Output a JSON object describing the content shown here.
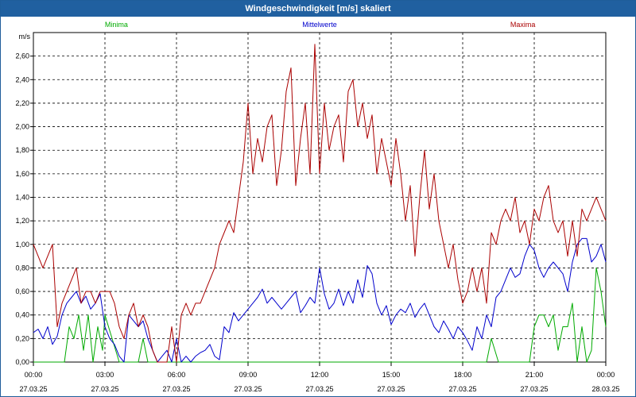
{
  "window": {
    "title": "Windgeschwindigkeit [m/s] skaliert"
  },
  "chart_data": {
    "type": "line",
    "title": "Windgeschwindigkeit [m/s] skaliert",
    "ylabel": "m/s",
    "ylim": [
      0,
      2.8
    ],
    "yticks": [
      "0,00",
      "0,20",
      "0,40",
      "0,60",
      "0,80",
      "1,00",
      "1,20",
      "1,40",
      "1,60",
      "1,80",
      "2,00",
      "2,20",
      "2,40",
      "2,60"
    ],
    "ytick_values": [
      0,
      0.2,
      0.4,
      0.6,
      0.8,
      1.0,
      1.2,
      1.4,
      1.6,
      1.8,
      2.0,
      2.2,
      2.4,
      2.6
    ],
    "xlim_hours": [
      0,
      24
    ],
    "xticks": [
      {
        "time": "00:00",
        "date": "27.03.25"
      },
      {
        "time": "03:00",
        "date": "27.03.25"
      },
      {
        "time": "06:00",
        "date": "27.03.25"
      },
      {
        "time": "09:00",
        "date": "27.03.25"
      },
      {
        "time": "12:00",
        "date": "27.03.25"
      },
      {
        "time": "15:00",
        "date": "27.03.25"
      },
      {
        "time": "18:00",
        "date": "27.03.25"
      },
      {
        "time": "21:00",
        "date": "27.03.25"
      },
      {
        "time": "00:00",
        "date": "28.03.25"
      }
    ],
    "grid": true,
    "legend_placement": "top",
    "series": [
      {
        "name": "Minima",
        "color": "#00aa00",
        "x": [
          0,
          0.3,
          0.7,
          1.0,
          1.3,
          1.5,
          1.7,
          1.9,
          2.1,
          2.3,
          2.5,
          2.7,
          2.9,
          3.0,
          3.3,
          3.6,
          3.9,
          4.2,
          4.4,
          4.6,
          4.8,
          5.0,
          5.3,
          5.6,
          6.0,
          6.5,
          7.0,
          7.5,
          8.0,
          9.0,
          10.0,
          11.0,
          12.0,
          13.0,
          14.0,
          15.0,
          16.0,
          17.0,
          18.0,
          18.5,
          18.8,
          19.0,
          19.2,
          19.5,
          20.0,
          20.3,
          20.6,
          20.8,
          21.0,
          21.2,
          21.4,
          21.6,
          21.8,
          22.0,
          22.2,
          22.4,
          22.6,
          22.8,
          23.0,
          23.2,
          23.4,
          23.6,
          23.8,
          24.0
        ],
        "values": [
          0,
          0,
          0,
          0,
          0,
          0.3,
          0.2,
          0.4,
          0.1,
          0.4,
          0,
          0.3,
          0.1,
          0.4,
          0.2,
          0,
          0,
          0,
          0,
          0.2,
          0,
          0,
          0,
          0,
          0,
          0,
          0,
          0,
          0,
          0,
          0,
          0,
          0,
          0,
          0,
          0,
          0,
          0,
          0,
          0,
          0,
          0,
          0.2,
          0,
          0,
          0,
          0,
          0,
          0.3,
          0.4,
          0.4,
          0.3,
          0.4,
          0.1,
          0.3,
          0.3,
          0.5,
          0,
          0.3,
          0,
          0.1,
          0.8,
          0.6,
          0.3
        ]
      },
      {
        "name": "Mittelwerte",
        "color": "#0000cc",
        "x": [
          0,
          0.2,
          0.4,
          0.6,
          0.8,
          1.0,
          1.2,
          1.4,
          1.6,
          1.8,
          2.0,
          2.2,
          2.4,
          2.6,
          2.8,
          3.0,
          3.2,
          3.4,
          3.6,
          3.8,
          4.0,
          4.2,
          4.4,
          4.6,
          4.8,
          5.0,
          5.2,
          5.4,
          5.6,
          5.8,
          6.0,
          6.2,
          6.4,
          6.6,
          6.8,
          7.0,
          7.2,
          7.4,
          7.6,
          7.8,
          8.0,
          8.2,
          8.4,
          8.6,
          8.8,
          9.0,
          9.2,
          9.4,
          9.6,
          9.8,
          10.0,
          10.2,
          10.4,
          10.6,
          10.8,
          11.0,
          11.2,
          11.4,
          11.6,
          11.8,
          12.0,
          12.2,
          12.4,
          12.6,
          12.8,
          13.0,
          13.2,
          13.4,
          13.6,
          13.8,
          14.0,
          14.2,
          14.4,
          14.6,
          14.8,
          15.0,
          15.2,
          15.4,
          15.6,
          15.8,
          16.0,
          16.2,
          16.4,
          16.6,
          16.8,
          17.0,
          17.2,
          17.4,
          17.6,
          17.8,
          18.0,
          18.2,
          18.4,
          18.6,
          18.8,
          19.0,
          19.2,
          19.4,
          19.6,
          19.8,
          20.0,
          20.2,
          20.4,
          20.6,
          20.8,
          21.0,
          21.2,
          21.4,
          21.6,
          21.8,
          22.0,
          22.2,
          22.4,
          22.6,
          22.8,
          23.0,
          23.2,
          23.4,
          23.6,
          23.8,
          24.0
        ],
        "values": [
          0.25,
          0.28,
          0.2,
          0.3,
          0.15,
          0.22,
          0.4,
          0.5,
          0.55,
          0.6,
          0.5,
          0.56,
          0.45,
          0.5,
          0.58,
          0.3,
          0.2,
          0.15,
          0.05,
          0,
          0.4,
          0.35,
          0.3,
          0.35,
          0.2,
          0.1,
          0,
          0.05,
          0.1,
          0,
          0.2,
          0,
          0.05,
          0,
          0.05,
          0.08,
          0.1,
          0.15,
          0.05,
          0.02,
          0.3,
          0.25,
          0.42,
          0.35,
          0.4,
          0.45,
          0.5,
          0.55,
          0.62,
          0.5,
          0.55,
          0.5,
          0.45,
          0.5,
          0.55,
          0.6,
          0.42,
          0.48,
          0.55,
          0.5,
          0.8,
          0.58,
          0.45,
          0.5,
          0.62,
          0.48,
          0.6,
          0.5,
          0.7,
          0.55,
          0.82,
          0.75,
          0.5,
          0.4,
          0.48,
          0.32,
          0.4,
          0.45,
          0.42,
          0.5,
          0.38,
          0.45,
          0.5,
          0.4,
          0.3,
          0.25,
          0.35,
          0.28,
          0.2,
          0.3,
          0.25,
          0.18,
          0.1,
          0.3,
          0.2,
          0.4,
          0.3,
          0.55,
          0.6,
          0.7,
          0.8,
          0.72,
          0.75,
          0.9,
          1.0,
          0.95,
          0.8,
          0.72,
          0.8,
          0.85,
          0.8,
          0.75,
          0.6,
          0.85,
          1.0,
          1.05,
          1.05,
          0.85,
          0.9,
          1.0,
          0.85
        ]
      },
      {
        "name": "Maxima",
        "color": "#aa0000",
        "x": [
          0,
          0.2,
          0.4,
          0.6,
          0.8,
          1.0,
          1.2,
          1.4,
          1.6,
          1.8,
          2.0,
          2.2,
          2.4,
          2.6,
          2.8,
          3.0,
          3.2,
          3.4,
          3.6,
          3.8,
          4.0,
          4.2,
          4.4,
          4.6,
          4.8,
          5.0,
          5.2,
          5.4,
          5.6,
          5.8,
          6.0,
          6.2,
          6.4,
          6.6,
          6.8,
          7.0,
          7.2,
          7.4,
          7.6,
          7.8,
          8.0,
          8.2,
          8.4,
          8.6,
          8.8,
          9.0,
          9.2,
          9.4,
          9.6,
          9.8,
          10.0,
          10.2,
          10.4,
          10.6,
          10.8,
          11.0,
          11.2,
          11.4,
          11.6,
          11.8,
          12.0,
          12.2,
          12.4,
          12.6,
          12.8,
          13.0,
          13.2,
          13.4,
          13.6,
          13.8,
          14.0,
          14.2,
          14.4,
          14.6,
          14.8,
          15.0,
          15.2,
          15.4,
          15.6,
          15.8,
          16.0,
          16.2,
          16.4,
          16.6,
          16.8,
          17.0,
          17.2,
          17.4,
          17.6,
          17.8,
          18.0,
          18.2,
          18.4,
          18.6,
          18.8,
          19.0,
          19.2,
          19.4,
          19.6,
          19.8,
          20.0,
          20.2,
          20.4,
          20.6,
          20.8,
          21.0,
          21.2,
          21.4,
          21.6,
          21.8,
          22.0,
          22.2,
          22.4,
          22.6,
          22.8,
          23.0,
          23.2,
          23.4,
          23.6,
          23.8,
          24.0
        ],
        "values": [
          1.0,
          0.9,
          0.8,
          0.9,
          1.0,
          0.3,
          0.5,
          0.6,
          0.7,
          0.8,
          0.5,
          0.6,
          0.6,
          0.5,
          0.6,
          0.6,
          0.6,
          0.5,
          0.3,
          0.2,
          0.4,
          0.5,
          0.3,
          0.4,
          0.3,
          0.1,
          0,
          0,
          0,
          0.3,
          0,
          0.4,
          0.5,
          0.4,
          0.5,
          0.5,
          0.6,
          0.7,
          0.8,
          1.0,
          1.1,
          1.2,
          1.1,
          1.4,
          1.7,
          2.2,
          1.6,
          1.9,
          1.7,
          2.0,
          2.1,
          1.5,
          1.8,
          2.3,
          2.5,
          1.5,
          1.9,
          2.2,
          1.6,
          2.7,
          1.6,
          2.2,
          1.8,
          2.0,
          2.1,
          1.7,
          2.3,
          2.4,
          2.0,
          2.2,
          1.9,
          2.1,
          1.6,
          1.9,
          1.7,
          1.5,
          1.9,
          1.6,
          1.2,
          1.5,
          0.9,
          1.4,
          1.8,
          1.3,
          1.6,
          1.2,
          1.0,
          0.8,
          1.0,
          0.7,
          0.5,
          0.6,
          0.8,
          0.6,
          0.8,
          0.5,
          1.1,
          1.0,
          1.2,
          1.3,
          1.2,
          1.4,
          1.1,
          1.2,
          1.0,
          1.3,
          1.2,
          1.4,
          1.5,
          1.2,
          1.1,
          1.2,
          0.9,
          1.2,
          0.9,
          1.3,
          1.2,
          1.3,
          1.4,
          1.3,
          1.2
        ]
      }
    ]
  }
}
